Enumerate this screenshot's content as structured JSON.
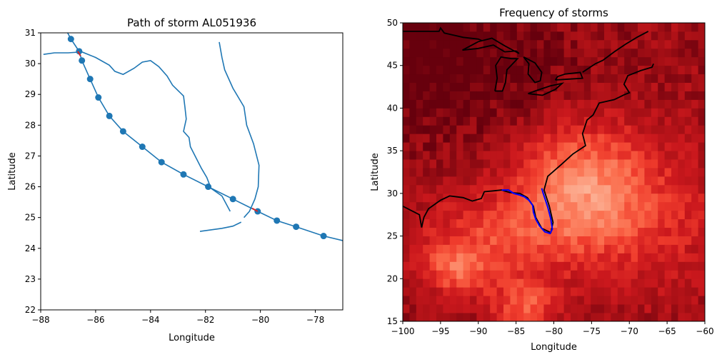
{
  "chart_data": [
    {
      "type": "line",
      "title": "Path of storm AL051936",
      "xlabel": "Longitude",
      "ylabel": "Latitude",
      "xlim": [
        -88,
        -77
      ],
      "ylim": [
        22,
        31
      ],
      "x_ticks": [
        -88,
        -86,
        -84,
        -82,
        -80,
        -78
      ],
      "y_ticks": [
        22,
        23,
        24,
        25,
        26,
        27,
        28,
        29,
        30,
        31
      ],
      "grid": false,
      "series": [
        {
          "points": [
            [
              -87.2,
              31.3
            ],
            [
              -86.9,
              30.8
            ],
            [
              -86.6,
              30.4
            ],
            [
              -86.5,
              30.1
            ],
            [
              -86.2,
              29.5
            ],
            [
              -85.9,
              28.9
            ],
            [
              -85.5,
              28.3
            ],
            [
              -85.0,
              27.8
            ],
            [
              -84.3,
              27.3
            ],
            [
              -83.6,
              26.8
            ],
            [
              -82.8,
              26.4
            ],
            [
              -81.9,
              26.0
            ],
            [
              -81.0,
              25.6
            ],
            [
              -80.1,
              25.2
            ],
            [
              -79.4,
              24.9
            ],
            [
              -78.7,
              24.7
            ],
            [
              -77.7,
              24.4
            ],
            [
              -77.0,
              24.25
            ]
          ],
          "markers": [
            [
              -86.9,
              30.8
            ],
            [
              -86.6,
              30.4
            ],
            [
              -86.5,
              30.1
            ],
            [
              -86.2,
              29.5
            ],
            [
              -85.9,
              28.9
            ],
            [
              -85.5,
              28.3
            ],
            [
              -85.0,
              27.8
            ],
            [
              -84.3,
              27.3
            ],
            [
              -83.6,
              26.8
            ],
            [
              -82.8,
              26.4
            ],
            [
              -81.9,
              26.0
            ],
            [
              -81.0,
              25.6
            ],
            [
              -80.1,
              25.2
            ],
            [
              -79.4,
              24.9
            ],
            [
              -78.7,
              24.7
            ],
            [
              -77.7,
              24.4
            ]
          ]
        }
      ],
      "landfalls": [
        [
          [
            -86.65,
            30.4
          ],
          [
            -86.55,
            30.25
          ]
        ],
        [
          [
            -80.3,
            25.3
          ],
          [
            -80.1,
            25.2
          ]
        ]
      ],
      "coastline": [
        [
          -87.9,
          30.3
        ],
        [
          -87.5,
          30.35
        ],
        [
          -87.0,
          30.35
        ],
        [
          -86.5,
          30.38
        ],
        [
          -86.0,
          30.2
        ],
        [
          -85.5,
          29.95
        ],
        [
          -85.3,
          29.75
        ],
        [
          -85.0,
          29.65
        ],
        [
          -84.6,
          29.85
        ],
        [
          -84.3,
          30.05
        ],
        [
          -84.0,
          30.1
        ],
        [
          -83.7,
          29.9
        ],
        [
          -83.4,
          29.6
        ],
        [
          -83.2,
          29.3
        ],
        [
          -82.8,
          28.95
        ],
        [
          -82.75,
          28.6
        ],
        [
          -82.7,
          28.2
        ],
        [
          -82.8,
          27.8
        ],
        [
          -82.6,
          27.6
        ],
        [
          -82.55,
          27.3
        ],
        [
          -82.35,
          26.95
        ],
        [
          -82.15,
          26.6
        ],
        [
          -81.95,
          26.3
        ],
        [
          -81.8,
          25.95
        ],
        [
          -81.4,
          25.7
        ],
        [
          -81.1,
          25.2
        ]
      ],
      "east_coast": [
        [
          -81.5,
          30.7
        ],
        [
          -81.4,
          30.2
        ],
        [
          -81.3,
          29.8
        ],
        [
          -81.0,
          29.2
        ],
        [
          -80.6,
          28.6
        ],
        [
          -80.5,
          28.0
        ],
        [
          -80.25,
          27.4
        ],
        [
          -80.05,
          26.7
        ],
        [
          -80.08,
          26.0
        ],
        [
          -80.2,
          25.6
        ],
        [
          -80.4,
          25.2
        ],
        [
          -80.6,
          25.0
        ]
      ],
      "keys": [
        [
          -82.2,
          24.55
        ],
        [
          -81.8,
          24.6
        ],
        [
          -81.4,
          24.65
        ],
        [
          -81.0,
          24.72
        ],
        [
          -80.7,
          24.85
        ]
      ],
      "line_color": "#1f77b4",
      "landfall_color": "#d62728"
    },
    {
      "type": "heatmap",
      "title": "Frequency of storms",
      "xlabel": "Longitude",
      "ylabel": "Latitude",
      "xlim": [
        -100,
        -60
      ],
      "ylim": [
        15,
        50
      ],
      "x_ticks": [
        -100,
        -95,
        -90,
        -85,
        -80,
        -75,
        -70,
        -65,
        -60
      ],
      "y_ticks": [
        15,
        20,
        25,
        30,
        35,
        40,
        45,
        50
      ],
      "colormap": "Reds_r",
      "coastline_color": "#000000",
      "track_color": "#0000ff",
      "storm_track": [
        [
          -86.9,
          30.4
        ],
        [
          -86.0,
          30.4
        ],
        [
          -85.3,
          30.0
        ],
        [
          -84.5,
          29.8
        ],
        [
          -83.9,
          29.6
        ],
        [
          -83.3,
          29.2
        ],
        [
          -82.8,
          28.6
        ],
        [
          -82.7,
          27.8
        ],
        [
          -82.4,
          27.0
        ],
        [
          -81.9,
          26.2
        ],
        [
          -81.2,
          25.5
        ],
        [
          -80.5,
          25.3
        ],
        [
          -80.2,
          25.8
        ],
        [
          -80.4,
          27.0
        ],
        [
          -80.8,
          28.4
        ],
        [
          -81.4,
          30.0
        ],
        [
          -81.6,
          30.6
        ]
      ],
      "coastline": [
        [
          -100,
          28.5
        ],
        [
          -97.8,
          27.5
        ],
        [
          -97.5,
          26.0
        ],
        [
          -97.2,
          27.2
        ],
        [
          -96.6,
          28.2
        ],
        [
          -95.0,
          29.2
        ],
        [
          -93.8,
          29.7
        ],
        [
          -92.0,
          29.5
        ],
        [
          -90.8,
          29.1
        ],
        [
          -89.6,
          29.4
        ],
        [
          -89.2,
          30.2
        ],
        [
          -88.0,
          30.3
        ],
        [
          -86.9,
          30.4
        ],
        [
          -85.8,
          30.1
        ],
        [
          -84.5,
          30.0
        ],
        [
          -83.5,
          29.5
        ],
        [
          -82.7,
          28.5
        ],
        [
          -82.4,
          27.2
        ],
        [
          -81.6,
          25.9
        ],
        [
          -80.4,
          25.4
        ],
        [
          -80.1,
          26.6
        ],
        [
          -80.6,
          28.5
        ],
        [
          -81.3,
          30.4
        ],
        [
          -80.8,
          32.0
        ],
        [
          -79.0,
          33.4
        ],
        [
          -77.5,
          34.6
        ],
        [
          -75.8,
          35.6
        ],
        [
          -76.2,
          37.0
        ],
        [
          -75.6,
          38.6
        ],
        [
          -74.8,
          39.2
        ],
        [
          -74.0,
          40.6
        ],
        [
          -72.0,
          41.0
        ],
        [
          -70.6,
          41.6
        ],
        [
          -70.0,
          41.8
        ],
        [
          -70.7,
          42.8
        ],
        [
          -70.2,
          43.8
        ],
        [
          -68.5,
          44.4
        ],
        [
          -67.0,
          44.8
        ],
        [
          -66.8,
          45.2
        ]
      ],
      "border_top": [
        [
          -100,
          49.0
        ],
        [
          -95.2,
          49.0
        ],
        [
          -95.0,
          49.4
        ],
        [
          -94.5,
          48.8
        ],
        [
          -92.0,
          48.3
        ],
        [
          -90.0,
          48.1
        ],
        [
          -89.5,
          47.9
        ]
      ],
      "lakes": [
        [
          [
            -92.1,
            46.8
          ],
          [
            -90.0,
            47.0
          ],
          [
            -88.0,
            47.4
          ],
          [
            -86.5,
            46.6
          ],
          [
            -85.0,
            46.7
          ],
          [
            -84.6,
            46.4
          ],
          [
            -86.5,
            47.3
          ],
          [
            -88.2,
            48.2
          ],
          [
            -90.0,
            47.8
          ],
          [
            -92.1,
            46.8
          ]
        ],
        [
          [
            -87.8,
            42.0
          ],
          [
            -87.5,
            43.5
          ],
          [
            -87.7,
            45.0
          ],
          [
            -87.0,
            46.0
          ],
          [
            -85.6,
            45.8
          ],
          [
            -84.8,
            45.8
          ],
          [
            -86.2,
            44.5
          ],
          [
            -86.4,
            43.0
          ],
          [
            -86.8,
            42.0
          ],
          [
            -87.8,
            42.0
          ]
        ],
        [
          [
            -84.0,
            46.0
          ],
          [
            -82.5,
            45.3
          ],
          [
            -81.6,
            44.2
          ],
          [
            -81.8,
            43.2
          ],
          [
            -82.5,
            43.0
          ],
          [
            -83.4,
            44.0
          ],
          [
            -83.3,
            45.2
          ],
          [
            -84.0,
            46.0
          ]
        ],
        [
          [
            -83.4,
            41.7
          ],
          [
            -81.5,
            41.5
          ],
          [
            -79.8,
            42.2
          ],
          [
            -78.9,
            42.9
          ],
          [
            -80.5,
            42.6
          ],
          [
            -82.5,
            42.0
          ],
          [
            -83.4,
            41.7
          ]
        ],
        [
          [
            -79.8,
            43.3
          ],
          [
            -78.0,
            43.4
          ],
          [
            -76.2,
            43.5
          ],
          [
            -76.5,
            44.2
          ],
          [
            -78.5,
            44.0
          ],
          [
            -79.5,
            43.7
          ],
          [
            -79.8,
            43.3
          ]
        ]
      ],
      "st_lawrence": [
        [
          -76.2,
          44.2
        ],
        [
          -74.5,
          45.2
        ],
        [
          -73.5,
          45.6
        ],
        [
          -72.0,
          46.6
        ],
        [
          -70.5,
          47.5
        ],
        [
          -69.0,
          48.3
        ],
        [
          -67.5,
          49.0
        ]
      ]
    }
  ]
}
